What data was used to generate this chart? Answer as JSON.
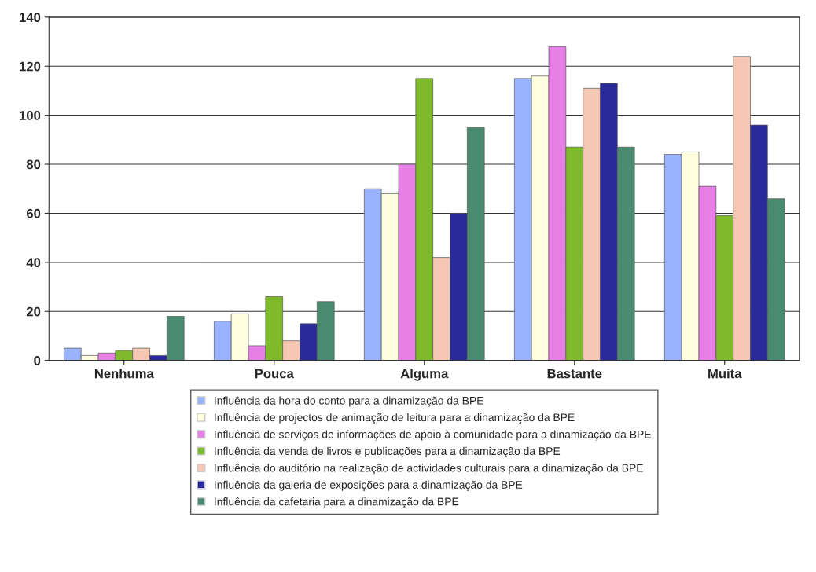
{
  "chart_data": {
    "type": "bar",
    "categories": [
      "Nenhuma",
      "Pouca",
      "Alguma",
      "Bastante",
      "Muita"
    ],
    "series": [
      {
        "name": "Influência da hora do conto para a dinamização da BPE",
        "color": "#99b3ff",
        "values": [
          5,
          16,
          70,
          115,
          84
        ]
      },
      {
        "name": "Influência de projectos de animação de leitura para a dinamização da BPE",
        "color": "#ffffe0",
        "values": [
          2,
          19,
          68,
          116,
          85
        ]
      },
      {
        "name": "Influência de serviços de informações de apoio à comunidade para a dinamização da BPE",
        "color": "#e680e6",
        "values": [
          3,
          6,
          80,
          128,
          71
        ]
      },
      {
        "name": "Influência da venda de livros e publicações para a dinamização da BPE",
        "color": "#7fba2a",
        "values": [
          4,
          26,
          115,
          87,
          59
        ]
      },
      {
        "name": "Influência do auditório na realização de actividades culturais para a dinamização da BPE",
        "color": "#f6c8b4",
        "values": [
          5,
          8,
          42,
          111,
          124
        ]
      },
      {
        "name": "Influência da galeria de exposições para a dinamização da BPE",
        "color": "#2a2a9a",
        "values": [
          2,
          15,
          60,
          113,
          96
        ]
      },
      {
        "name": "Influência da cafetaria para a dinamização da BPE",
        "color": "#4a8a70",
        "values": [
          18,
          24,
          95,
          87,
          66
        ]
      }
    ],
    "ylim": [
      0,
      140
    ],
    "yticks": [
      0,
      20,
      40,
      60,
      80,
      100,
      120,
      140
    ],
    "grid": "y",
    "legend": "bottom"
  }
}
